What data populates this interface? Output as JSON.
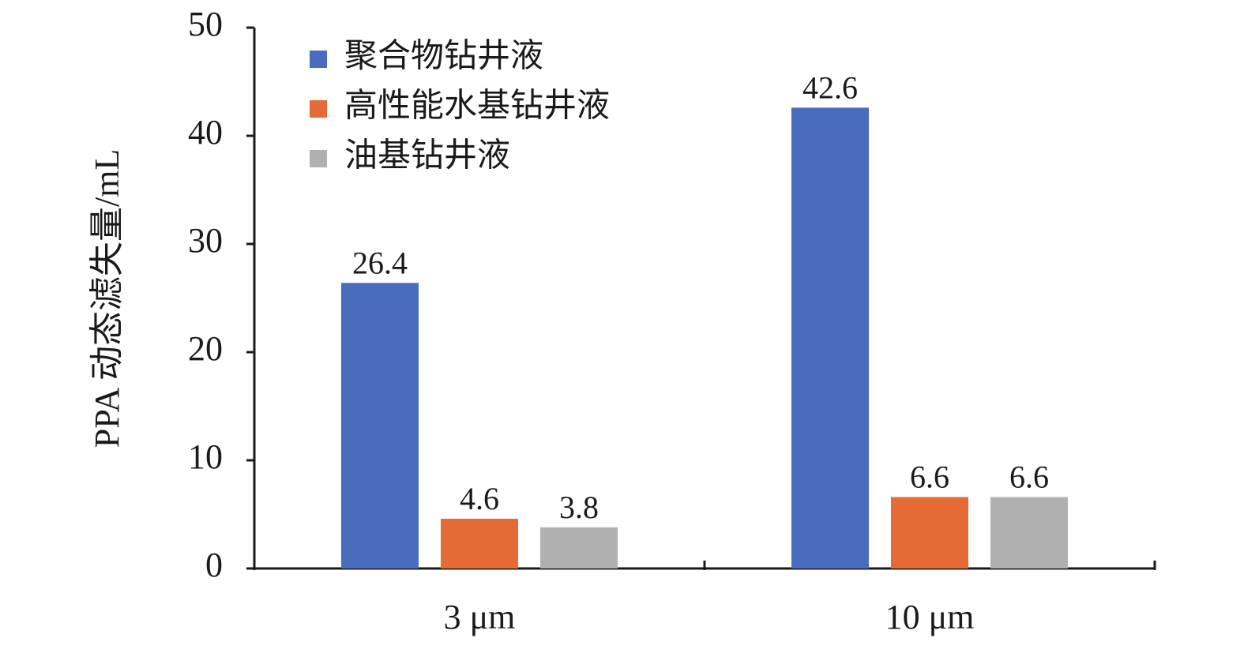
{
  "chart_data": {
    "type": "bar",
    "y_label": "PPA 动态滤失量/mL",
    "categories": [
      "3 μm",
      "10 μm"
    ],
    "series": [
      {
        "name": "聚合物钻井液",
        "color": "#4a6cbe",
        "values": [
          26.4,
          42.6
        ]
      },
      {
        "name": "高性能水基钻井液",
        "color": "#e46a36",
        "values": [
          4.6,
          6.6
        ]
      },
      {
        "name": "油基钻井液",
        "color": "#b0b0b0",
        "values": [
          3.8,
          6.6
        ]
      }
    ],
    "ylim": [
      0,
      50
    ],
    "yticks": [
      0,
      10,
      20,
      30,
      40,
      50
    ],
    "grid": false,
    "legend": "upper left"
  }
}
